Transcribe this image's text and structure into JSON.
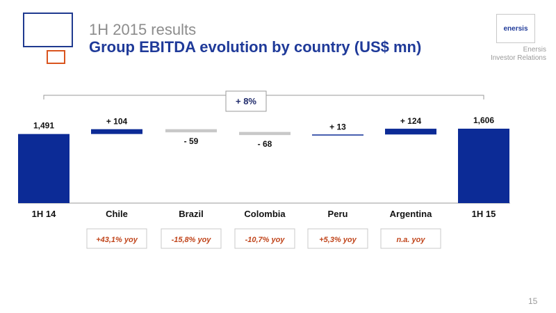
{
  "header": {
    "title": "1H 2015 results",
    "subtitle": "Group EBITDA evolution by country (US$ mn)",
    "logo_text": "enersis",
    "org_line1": "Enersis",
    "org_line2": "Investor Relations"
  },
  "page_number": "15",
  "colors": {
    "bar": "#0c2b96",
    "negative": "#c8c8c8",
    "yoy_text": "#c0441a",
    "axis": "#999999"
  },
  "chart_data": {
    "type": "waterfall",
    "title": "Group EBITDA evolution by country (US$ mn)",
    "unit": "US$ mn",
    "categories": [
      "1H 14",
      "Chile",
      "Brazil",
      "Colombia",
      "Peru",
      "Argentina",
      "1H 15"
    ],
    "values": [
      1491,
      104,
      -59,
      -68,
      13,
      124,
      1606
    ],
    "value_labels": [
      "1,491",
      "+ 104",
      "- 59",
      "- 68",
      "+ 13",
      "+ 124",
      "1,606"
    ],
    "kinds": [
      "total",
      "delta",
      "delta",
      "delta",
      "delta",
      "delta",
      "total"
    ],
    "yoy": [
      "",
      "+43,1% yoy",
      "-15,8% yoy",
      "-10,7% yoy",
      "+5,3% yoy",
      "n.a.  yoy",
      ""
    ],
    "overall_change": "+ 8%"
  }
}
